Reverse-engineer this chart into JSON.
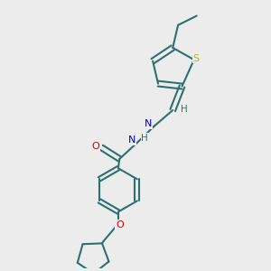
{
  "background_color": "#ececec",
  "bond_color": "#2d7070",
  "sulfur_color": "#b8b800",
  "nitrogen_color": "#0000cc",
  "oxygen_color": "#cc0000",
  "figsize": [
    3.0,
    3.0
  ],
  "dpi": 100,
  "xlim": [
    0,
    10
  ],
  "ylim": [
    0,
    10
  ]
}
